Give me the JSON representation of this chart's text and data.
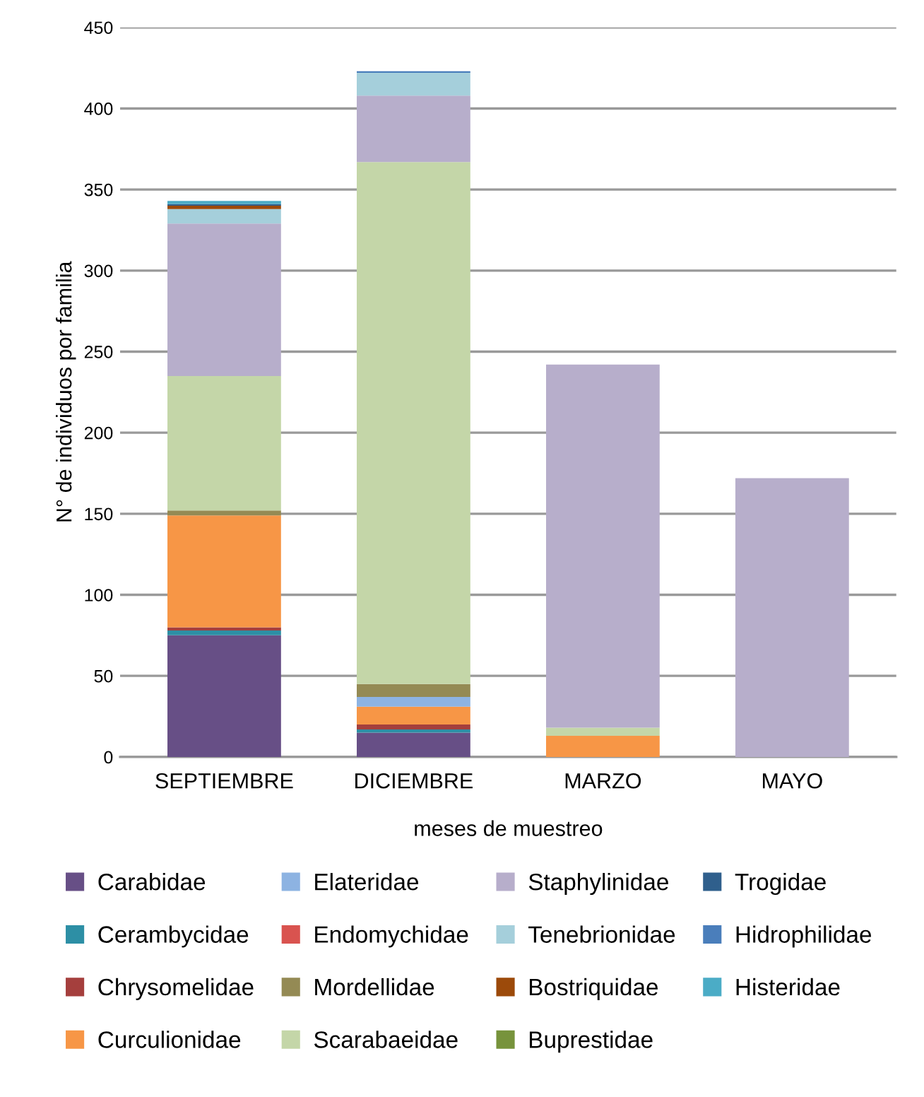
{
  "chart_data": {
    "type": "bar",
    "stacked": true,
    "xlabel": "meses de muestreo",
    "ylabel": "N° de individuos por familia",
    "categories": [
      "SEPTIEMBRE",
      "DICIEMBRE",
      "MARZO",
      "MAYO"
    ],
    "series": [
      {
        "name": "Carabidae",
        "color": "#674f86",
        "values": [
          75,
          15,
          0,
          0
        ]
      },
      {
        "name": "Cerambycidae",
        "color": "#2d8fa5",
        "values": [
          3,
          2,
          0,
          0
        ]
      },
      {
        "name": "Chrysomelidae",
        "color": "#a53f3d",
        "values": [
          2,
          3,
          0,
          0
        ]
      },
      {
        "name": "Curculionidae",
        "color": "#f79646",
        "values": [
          69,
          11,
          13,
          0
        ]
      },
      {
        "name": "Elateridae",
        "color": "#8db3e2",
        "values": [
          0,
          6,
          0,
          0
        ]
      },
      {
        "name": "Endomychidae",
        "color": "#d9534f",
        "values": [
          0,
          0,
          0,
          0
        ]
      },
      {
        "name": "Mordellidae",
        "color": "#948a54",
        "values": [
          3,
          8,
          0,
          0
        ]
      },
      {
        "name": "Scarabaeidae",
        "color": "#c4d6a8",
        "values": [
          83,
          322,
          5,
          0
        ]
      },
      {
        "name": "Staphylinidae",
        "color": "#b7aecb",
        "values": [
          94,
          41,
          224,
          172
        ]
      },
      {
        "name": "Tenebrionidae",
        "color": "#a5cfdb",
        "values": [
          9,
          14,
          0,
          0
        ]
      },
      {
        "name": "Bostriquidae",
        "color": "#9c4a0a",
        "values": [
          2,
          0,
          0,
          0
        ]
      },
      {
        "name": "Buprestidae",
        "color": "#77933c",
        "values": [
          0,
          0,
          0,
          0
        ]
      },
      {
        "name": "Trogidae",
        "color": "#2f5f8c",
        "values": [
          1,
          0,
          0,
          0
        ]
      },
      {
        "name": "Hidrophilidae",
        "color": "#4a7ebb",
        "values": [
          0,
          1,
          0,
          0
        ]
      },
      {
        "name": "Histeridae",
        "color": "#4bacc6",
        "values": [
          2,
          0,
          0,
          0
        ]
      }
    ],
    "ylim": [
      0,
      450
    ],
    "yticks": [
      0,
      50,
      100,
      150,
      200,
      250,
      300,
      350,
      400,
      450
    ],
    "grid": "y",
    "legend": "bottom"
  }
}
